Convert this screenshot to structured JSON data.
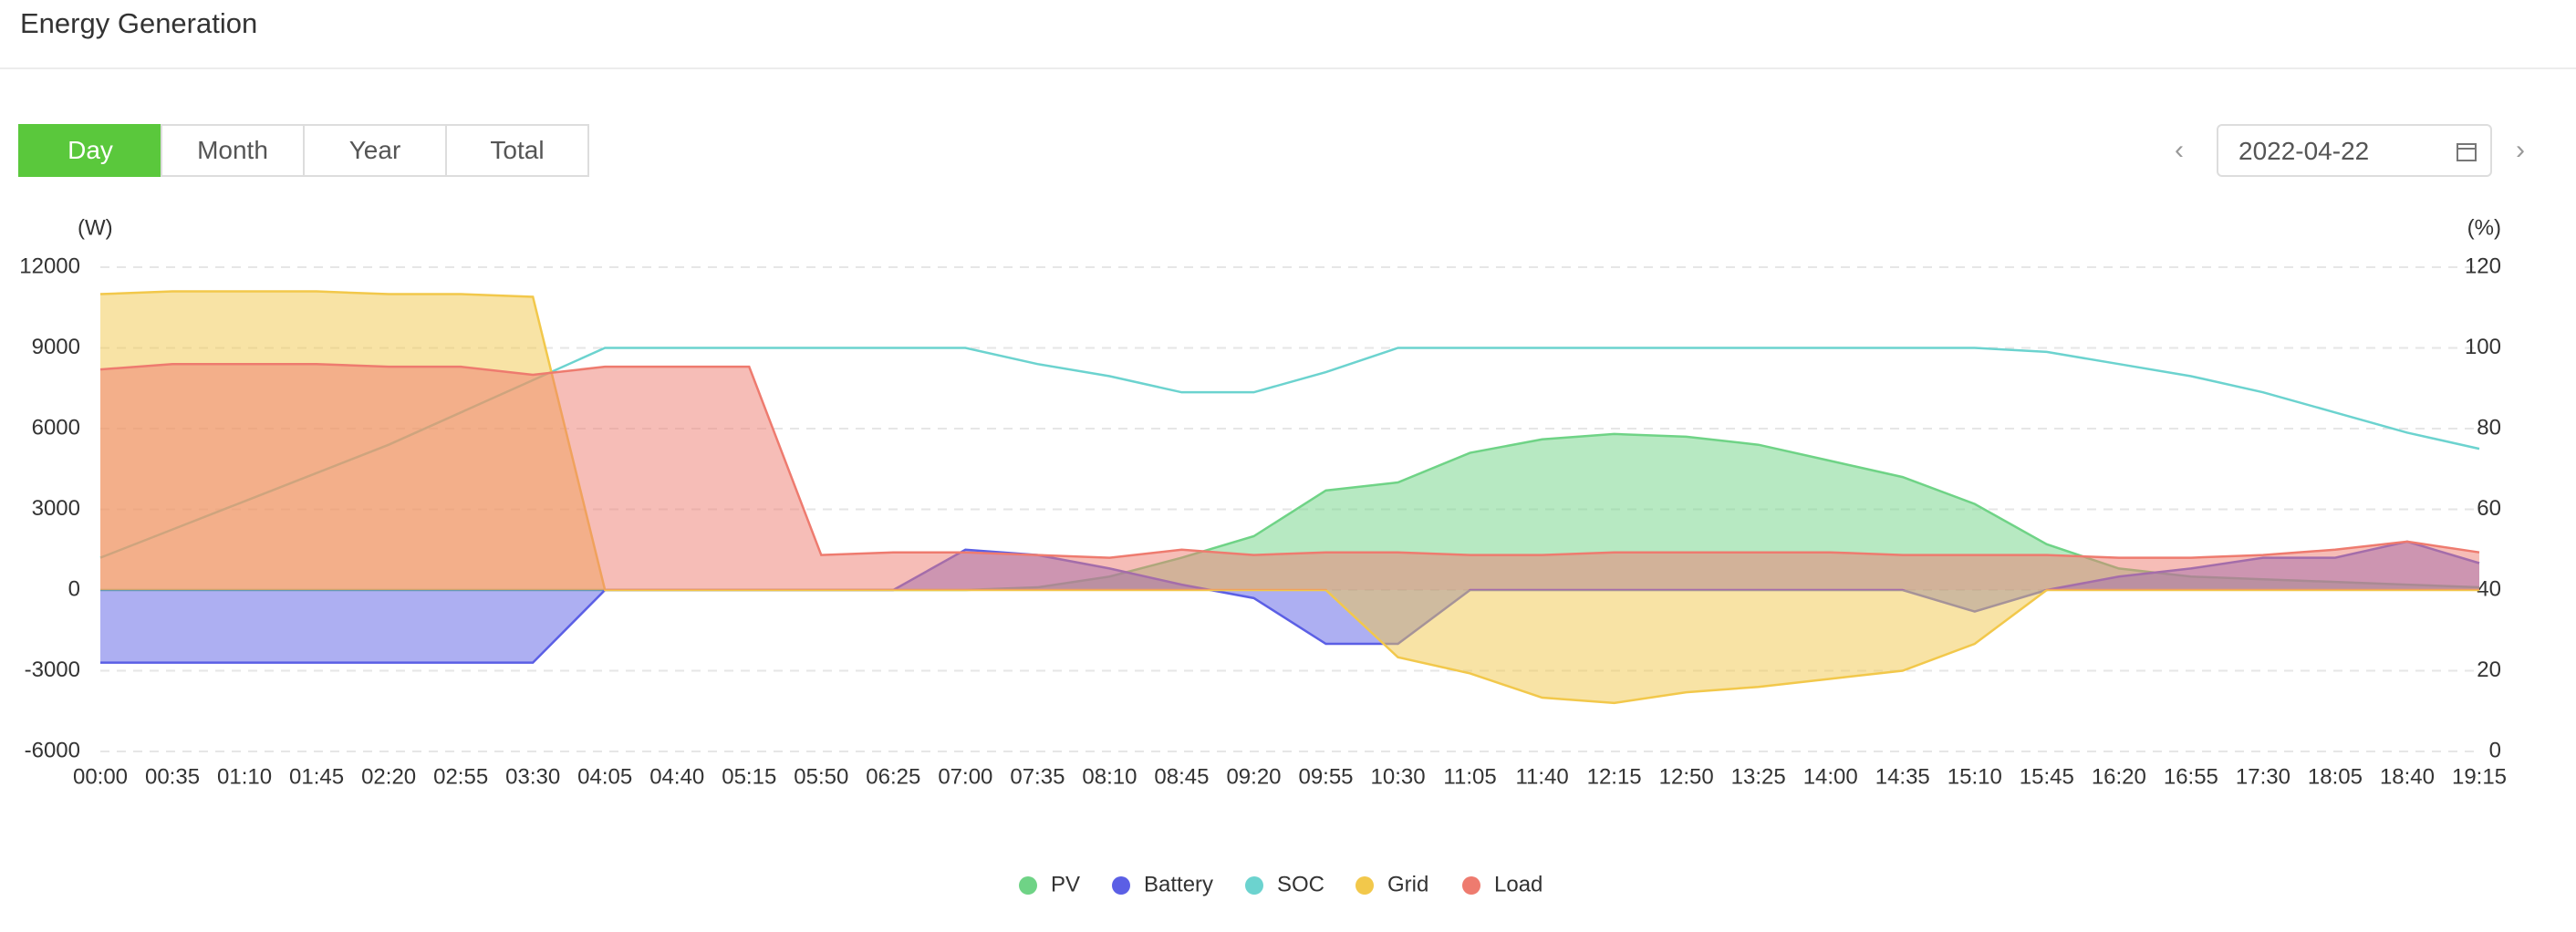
{
  "header": {
    "title": "Energy Generation",
    "tabs": [
      "Day",
      "Month",
      "Year",
      "Total"
    ],
    "active_tab": "Day",
    "date": "2022-04-22"
  },
  "chart_data": {
    "type": "area",
    "y_label": "(W)",
    "y2_label": "(%)",
    "categories": [
      "00:00",
      "00:35",
      "01:10",
      "01:45",
      "02:20",
      "02:55",
      "03:30",
      "04:05",
      "04:40",
      "05:15",
      "05:50",
      "06:25",
      "07:00",
      "07:35",
      "08:10",
      "08:45",
      "09:20",
      "09:55",
      "10:30",
      "11:05",
      "11:40",
      "12:15",
      "12:50",
      "13:25",
      "14:00",
      "14:35",
      "15:10",
      "15:45",
      "16:20",
      "16:55",
      "17:30",
      "18:05",
      "18:40",
      "19:15"
    ],
    "ylim": [
      -6000,
      12000
    ],
    "yticks": [
      -6000,
      -3000,
      0,
      3000,
      6000,
      9000,
      12000
    ],
    "y2lim": [
      0,
      120
    ],
    "y2ticks": [
      0,
      20,
      40,
      60,
      80,
      100,
      120
    ],
    "grid": true,
    "series": [
      {
        "name": "PV",
        "color": "#6fd386",
        "fill": true,
        "values": [
          0,
          0,
          0,
          0,
          0,
          0,
          0,
          0,
          0,
          0,
          0,
          0,
          0,
          100,
          500,
          1200,
          2000,
          3700,
          4000,
          5100,
          5600,
          5800,
          5700,
          5400,
          4800,
          4200,
          3200,
          1700,
          800,
          500,
          400,
          300,
          200,
          100
        ]
      },
      {
        "name": "Battery",
        "color": "#5b5fe5",
        "fill": true,
        "values": [
          -2700,
          -2700,
          -2700,
          -2700,
          -2700,
          -2700,
          -2700,
          0,
          0,
          0,
          0,
          0,
          1500,
          1300,
          800,
          200,
          -300,
          -2000,
          -2000,
          0,
          0,
          0,
          0,
          0,
          0,
          0,
          -800,
          0,
          500,
          800,
          1200,
          1200,
          1800,
          1000
        ]
      },
      {
        "name": "SOC",
        "color": "#6cd3cf",
        "fill": false,
        "axis": "y2",
        "values": [
          48,
          55,
          62,
          69,
          76,
          84,
          92,
          100,
          100,
          100,
          100,
          100,
          100,
          96,
          93,
          89,
          89,
          94,
          100,
          100,
          100,
          100,
          100,
          100,
          100,
          100,
          100,
          99,
          96,
          93,
          89,
          84,
          79,
          75
        ]
      },
      {
        "name": "Grid",
        "color": "#f2c84b",
        "fill": true,
        "values": [
          11000,
          11100,
          11100,
          11100,
          11000,
          11000,
          10900,
          0,
          0,
          0,
          0,
          0,
          0,
          0,
          0,
          0,
          0,
          0,
          -2500,
          -3100,
          -4000,
          -4200,
          -3800,
          -3600,
          -3300,
          -3000,
          -2000,
          0,
          0,
          0,
          0,
          0,
          0,
          0
        ]
      },
      {
        "name": "Load",
        "color": "#ee7b6f",
        "fill": true,
        "values": [
          8200,
          8400,
          8400,
          8400,
          8300,
          8300,
          8000,
          8300,
          8300,
          8300,
          1300,
          1400,
          1400,
          1300,
          1200,
          1500,
          1300,
          1400,
          1400,
          1300,
          1300,
          1400,
          1400,
          1400,
          1400,
          1300,
          1300,
          1300,
          1200,
          1200,
          1300,
          1500,
          1800,
          1400
        ]
      }
    ]
  }
}
